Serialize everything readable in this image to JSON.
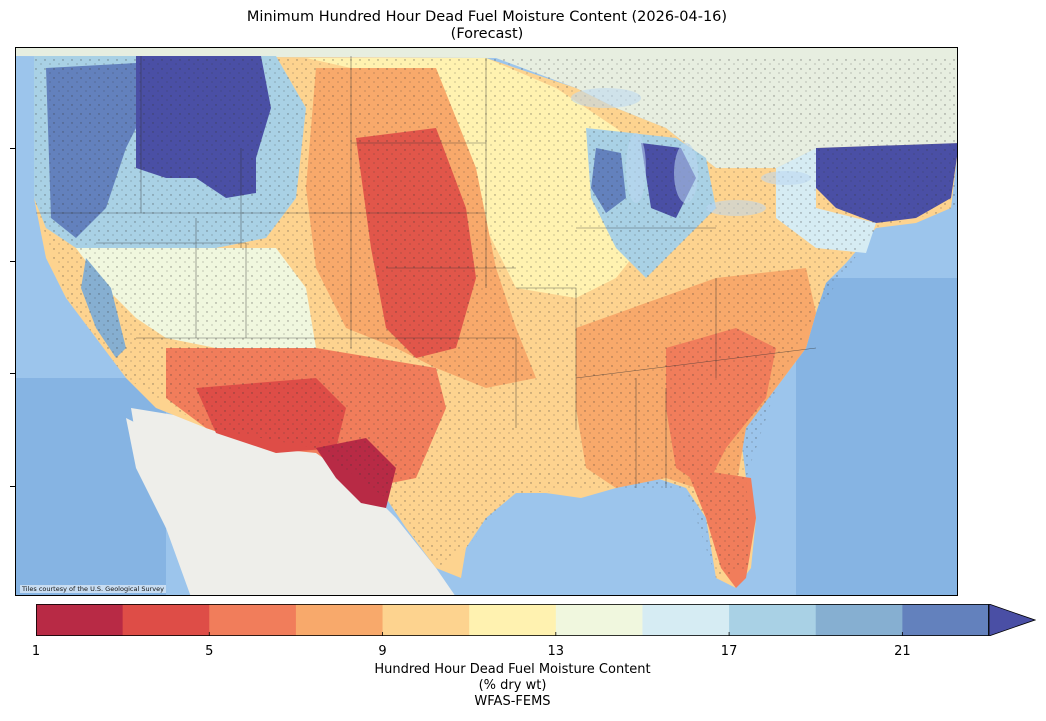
{
  "title": {
    "line1": "Minimum Hundred Hour Dead Fuel Moisture Content (2026-04-16)",
    "line2": "(Forecast)"
  },
  "map": {
    "attribution": "Tiles courtesy of the U.S. Geological Survey",
    "basemap_colors": {
      "ocean": "#9cc5ec",
      "land": "#e8eee0",
      "mexico": "#eeeeea"
    }
  },
  "colorbar": {
    "min": 1,
    "max": 23,
    "extend": "max",
    "ticks": [
      1,
      5,
      9,
      13,
      17,
      21
    ],
    "tick_labels": [
      "1",
      "5",
      "9",
      "13",
      "17",
      "21"
    ],
    "colors": [
      "#b82a45",
      "#de4d47",
      "#f17d5b",
      "#f8a96b",
      "#fdd38f",
      "#fff2b0",
      "#f0f7de",
      "#d6ecf3",
      "#a9d1e5",
      "#86afd1",
      "#6381bd",
      "#4a4fa5"
    ],
    "label_line1": "Hundred Hour Dead Fuel Moisture Content",
    "label_line2": "(% dry wt)",
    "label_line3": "WFAS-FEMS"
  }
}
